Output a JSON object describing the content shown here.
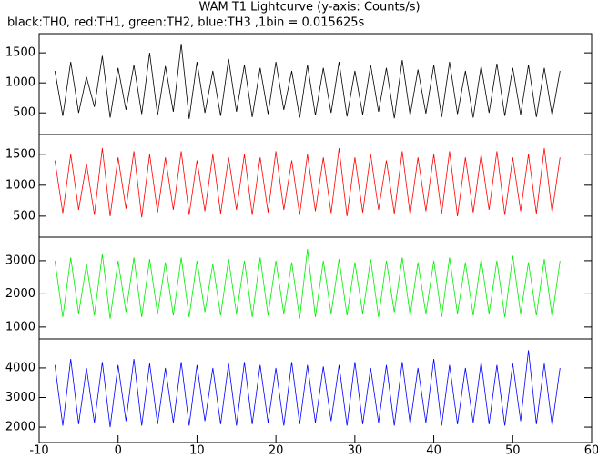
{
  "chart_data": [
    {
      "type": "line",
      "title": "WAM T1 Lightcurve (y-axis: Counts/s)",
      "subtitle": "black:TH0, red:TH1, green:TH2, blue:TH3 ,1bin = 0.015625s",
      "x": [
        -8,
        -7,
        -6,
        -5,
        -4,
        -3,
        -2,
        -1,
        0,
        1,
        2,
        3,
        4,
        5,
        6,
        7,
        8,
        9,
        10,
        11,
        12,
        13,
        14,
        15,
        16,
        17,
        18,
        19,
        20,
        21,
        22,
        23,
        24,
        25,
        26,
        27,
        28,
        29,
        30,
        31,
        32,
        33,
        34,
        35,
        36,
        37,
        38,
        39,
        40,
        41,
        42,
        43,
        44,
        45,
        46,
        47,
        48,
        49,
        50,
        51,
        52,
        53,
        54,
        55,
        56
      ],
      "series": [
        {
          "name": "TH0",
          "color": "#000000",
          "values": [
            1200,
            450,
            1350,
            500,
            1100,
            600,
            1450,
            420,
            1250,
            550,
            1300,
            480,
            1500,
            460,
            1280,
            520,
            1650,
            400,
            1350,
            500,
            1200,
            450,
            1400,
            520,
            1300,
            430,
            1250,
            480,
            1350,
            550,
            1200,
            420,
            1300,
            460,
            1250,
            500,
            1350,
            440,
            1200,
            470,
            1300,
            520,
            1250,
            410,
            1380,
            460,
            1220,
            490,
            1300,
            430,
            1350,
            480,
            1200,
            420,
            1280,
            500,
            1320,
            450,
            1250,
            470,
            1300,
            430,
            1250,
            460,
            1200
          ]
        }
      ],
      "xlim": [
        -10,
        60
      ],
      "ylim": [
        140,
        1820
      ],
      "yticks": [
        500,
        1000,
        1500
      ]
    },
    {
      "type": "line",
      "x": [
        -8,
        -7,
        -6,
        -5,
        -4,
        -3,
        -2,
        -1,
        0,
        1,
        2,
        3,
        4,
        5,
        6,
        7,
        8,
        9,
        10,
        11,
        12,
        13,
        14,
        15,
        16,
        17,
        18,
        19,
        20,
        21,
        22,
        23,
        24,
        25,
        26,
        27,
        28,
        29,
        30,
        31,
        32,
        33,
        34,
        35,
        36,
        37,
        38,
        39,
        40,
        41,
        42,
        43,
        44,
        45,
        46,
        47,
        48,
        49,
        50,
        51,
        52,
        53,
        54,
        55,
        56
      ],
      "series": [
        {
          "name": "TH1",
          "color": "#ff0000",
          "values": [
            1400,
            550,
            1500,
            600,
            1350,
            520,
            1600,
            500,
            1450,
            620,
            1550,
            480,
            1500,
            560,
            1450,
            600,
            1550,
            520,
            1400,
            580,
            1500,
            540,
            1450,
            600,
            1500,
            520,
            1450,
            560,
            1550,
            600,
            1400,
            520,
            1500,
            580,
            1450,
            550,
            1600,
            500,
            1450,
            560,
            1500,
            600,
            1400,
            540,
            1550,
            520,
            1450,
            580,
            1500,
            540,
            1550,
            500,
            1450,
            560,
            1500,
            600,
            1550,
            520,
            1450,
            580,
            1500,
            540,
            1600,
            560,
            1450
          ]
        }
      ],
      "xlim": [
        -10,
        60
      ],
      "ylim": [
        160,
        1820
      ],
      "yticks": [
        500,
        1000,
        1500
      ]
    },
    {
      "type": "line",
      "x": [
        -8,
        -7,
        -6,
        -5,
        -4,
        -3,
        -2,
        -1,
        0,
        1,
        2,
        3,
        4,
        5,
        6,
        7,
        8,
        9,
        10,
        11,
        12,
        13,
        14,
        15,
        16,
        17,
        18,
        19,
        20,
        21,
        22,
        23,
        24,
        25,
        26,
        27,
        28,
        29,
        30,
        31,
        32,
        33,
        34,
        35,
        36,
        37,
        38,
        39,
        40,
        41,
        42,
        43,
        44,
        45,
        46,
        47,
        48,
        49,
        50,
        51,
        52,
        53,
        54,
        55,
        56
      ],
      "series": [
        {
          "name": "TH2",
          "color": "#00ee00",
          "values": [
            3000,
            1300,
            3100,
            1400,
            2900,
            1350,
            3200,
            1250,
            3000,
            1450,
            3100,
            1300,
            3050,
            1400,
            2950,
            1350,
            3100,
            1300,
            3000,
            1450,
            2900,
            1350,
            3050,
            1400,
            3000,
            1300,
            3100,
            1350,
            3000,
            1400,
            2950,
            1250,
            3350,
            1300,
            3000,
            1400,
            3050,
            1350,
            2950,
            1400,
            3050,
            1300,
            3000,
            1450,
            3100,
            1350,
            2950,
            1400,
            3000,
            1300,
            3100,
            1400,
            2950,
            1350,
            3050,
            1400,
            3000,
            1300,
            3150,
            1400,
            2950,
            1350,
            3050,
            1300,
            3000
          ]
        }
      ],
      "xlim": [
        -10,
        60
      ],
      "ylim": [
        640,
        3710
      ],
      "yticks": [
        1000,
        2000,
        3000
      ]
    },
    {
      "type": "line",
      "x": [
        -8,
        -7,
        -6,
        -5,
        -4,
        -3,
        -2,
        -1,
        0,
        1,
        2,
        3,
        4,
        5,
        6,
        7,
        8,
        9,
        10,
        11,
        12,
        13,
        14,
        15,
        16,
        17,
        18,
        19,
        20,
        21,
        22,
        23,
        24,
        25,
        26,
        27,
        28,
        29,
        30,
        31,
        32,
        33,
        34,
        35,
        36,
        37,
        38,
        39,
        40,
        41,
        42,
        43,
        44,
        45,
        46,
        47,
        48,
        49,
        50,
        51,
        52,
        53,
        54,
        55,
        56
      ],
      "series": [
        {
          "name": "TH3",
          "color": "#0000ff",
          "values": [
            4100,
            2050,
            4300,
            2100,
            4000,
            2150,
            4200,
            2000,
            4100,
            2200,
            4300,
            2050,
            4150,
            2100,
            4000,
            2150,
            4200,
            2050,
            4100,
            2200,
            4000,
            2100,
            4150,
            2050,
            4200,
            2100,
            4100,
            2150,
            4000,
            2050,
            4200,
            2100,
            4100,
            2150,
            4050,
            2200,
            4100,
            2050,
            4200,
            2100,
            4000,
            2150,
            4100,
            2050,
            4200,
            2100,
            4000,
            2150,
            4300,
            2050,
            4100,
            2100,
            4000,
            2150,
            4200,
            2100,
            4100,
            2050,
            4150,
            2200,
            4600,
            2100,
            4150,
            2050,
            4000
          ]
        }
      ],
      "xlim": [
        -10,
        60
      ],
      "ylim": [
        1480,
        4980
      ],
      "yticks": [
        2000,
        3000,
        4000
      ],
      "xticks": [
        -10,
        0,
        10,
        20,
        30,
        40,
        50,
        60
      ]
    }
  ]
}
